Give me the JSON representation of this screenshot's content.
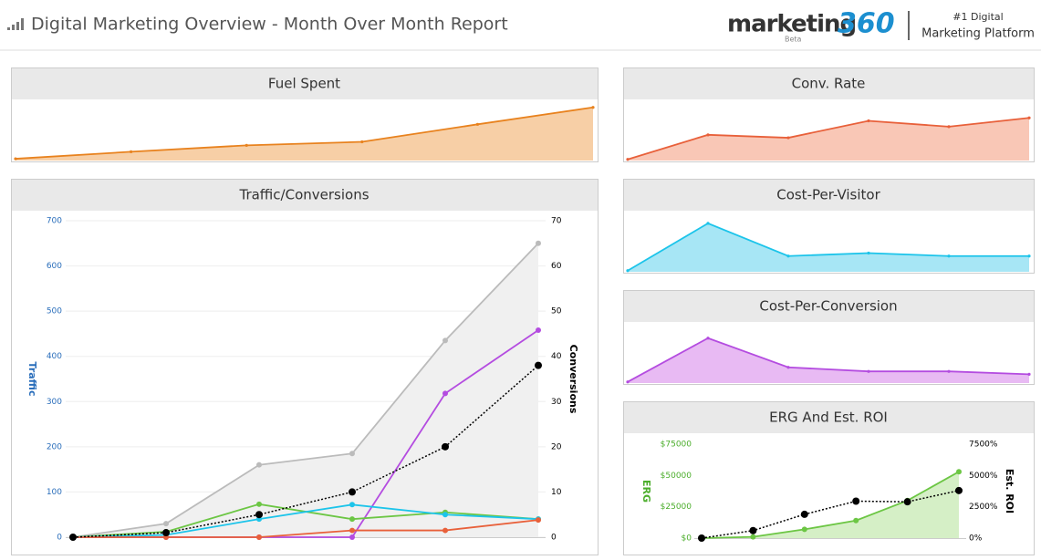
{
  "header": {
    "title": "Digital Marketing Overview - Month Over Month Report",
    "logo": {
      "name": "marketing",
      "number": "360",
      "tag": "Beta"
    },
    "tagline": [
      "#1 Digital",
      "Marketing Platform"
    ]
  },
  "chart_data": [
    {
      "type": "area",
      "title": "Fuel Spent",
      "ylim": [
        0,
        100
      ],
      "series": [
        {
          "color": "#e8821e",
          "fill": "#f7cfa6",
          "values": [
            3,
            15,
            26,
            32,
            62,
            91
          ]
        }
      ]
    },
    {
      "type": "area",
      "title": "Conv. Rate",
      "ylim": [
        0,
        100
      ],
      "series": [
        {
          "color": "#e8603a",
          "fill": "#f9c7b6",
          "values": [
            2,
            44,
            39,
            68,
            58,
            73
          ]
        }
      ]
    },
    {
      "type": "line",
      "title": "Traffic/Conversions",
      "ylabel": "Traffic",
      "y2label": "Conversions",
      "ylim": [
        0,
        700
      ],
      "yticks": [
        0,
        100,
        200,
        300,
        400,
        500,
        600,
        700
      ],
      "y2lim": [
        0,
        70
      ],
      "y2ticks": [
        0,
        10,
        20,
        30,
        40,
        50,
        60,
        70
      ],
      "grid": true,
      "ytick_color": "#2a6ebb",
      "y2tick_color": "#000000",
      "series": [
        {
          "color": "#bbbbbb",
          "fill": "#f0f0f0",
          "values": [
            0,
            30,
            160,
            185,
            435,
            650
          ]
        },
        {
          "color": "#b44ce0",
          "values": [
            0,
            0,
            0,
            0,
            318,
            458
          ]
        },
        {
          "color": "#6cc644",
          "values": [
            0,
            12,
            73,
            40,
            55,
            40
          ]
        },
        {
          "color": "#1cc4ea",
          "values": [
            0,
            5,
            40,
            72,
            50,
            40
          ]
        },
        {
          "color": "#e8603a",
          "values": [
            0,
            0,
            0,
            15,
            15,
            38
          ]
        },
        {
          "color": "#000000",
          "style": "dotted",
          "axis": "y2",
          "values": [
            0,
            1,
            5,
            10,
            20,
            38
          ]
        }
      ]
    },
    {
      "type": "area",
      "title": "Cost-Per-Visitor",
      "ylim": [
        0,
        100
      ],
      "series": [
        {
          "color": "#1cc4ea",
          "fill": "#a7e6f5",
          "values": [
            2,
            83,
            27,
            32,
            27,
            27
          ]
        }
      ]
    },
    {
      "type": "area",
      "title": "Cost-Per-Conversion",
      "ylim": [
        0,
        100
      ],
      "series": [
        {
          "color": "#b44ce0",
          "fill": "#e8baf3",
          "values": [
            2,
            77,
            27,
            20,
            20,
            15
          ]
        }
      ]
    },
    {
      "type": "line",
      "title": "ERG And Est. ROI",
      "ylabel": "ERG",
      "y2label": "Est. ROI",
      "ylim": [
        0,
        75000
      ],
      "yticks": [
        {
          "value": 0,
          "label": "$0"
        },
        {
          "value": 25000,
          "label": "$25000"
        },
        {
          "value": 50000,
          "label": "$50000"
        },
        {
          "value": 75000,
          "label": "$75000"
        }
      ],
      "y2lim": [
        0,
        7500
      ],
      "y2ticks": [
        {
          "value": 0,
          "label": "0%"
        },
        {
          "value": 2500,
          "label": "2500%"
        },
        {
          "value": 5000,
          "label": "5000%"
        },
        {
          "value": 7500,
          "label": "7500%"
        }
      ],
      "grid": false,
      "ytick_color": "#4cae2c",
      "y2tick_color": "#000000",
      "series": [
        {
          "color": "#6cc644",
          "fill": "#d5efc6",
          "values": [
            0,
            1000,
            7000,
            14000,
            30000,
            53000
          ]
        },
        {
          "color": "#000000",
          "style": "dotted",
          "axis": "y2",
          "values": [
            0,
            600,
            1900,
            2950,
            2900,
            3800
          ]
        }
      ]
    }
  ]
}
